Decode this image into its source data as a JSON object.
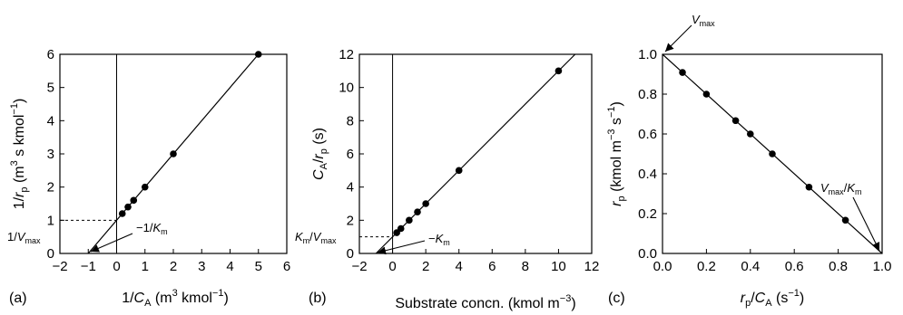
{
  "chart_data": [
    {
      "panel_label": "(a)",
      "type": "scatter",
      "xlabel": "1/C_A (m^3 kmol^-1)",
      "ylabel": "1/r_p (m^3 s kmol^-1)",
      "xlim": [
        -2,
        6
      ],
      "ylim": [
        0,
        6
      ],
      "x_ticks": [
        "−2",
        "−1",
        "0",
        "1",
        "2",
        "3",
        "4",
        "5",
        "6"
      ],
      "y_ticks": [
        "0",
        "1",
        "2",
        "3",
        "4",
        "5",
        "6"
      ],
      "points": [
        {
          "x": 0.2,
          "y": 1.2
        },
        {
          "x": 0.4,
          "y": 1.4
        },
        {
          "x": 0.6,
          "y": 1.6
        },
        {
          "x": 1.0,
          "y": 2.0
        },
        {
          "x": 2.0,
          "y": 3.0
        },
        {
          "x": 5.0,
          "y": 6.0
        }
      ],
      "fit_line": {
        "from": [
          -1,
          0
        ],
        "to": [
          5,
          6
        ]
      },
      "annotations": {
        "intercept": "1/V_max",
        "root": "−1/K_m"
      }
    },
    {
      "panel_label": "(b)",
      "type": "scatter",
      "xlabel": "Substrate concn. (kmol m^-3)",
      "ylabel": "C_A/r_p (s)",
      "xlim": [
        -2,
        12
      ],
      "ylim": [
        0,
        12
      ],
      "x_ticks": [
        "−2",
        "0",
        "2",
        "4",
        "6",
        "8",
        "10",
        "12"
      ],
      "y_ticks": [
        "0",
        "2",
        "4",
        "6",
        "8",
        "10",
        "12"
      ],
      "points": [
        {
          "x": 0.25,
          "y": 1.25
        },
        {
          "x": 0.5,
          "y": 1.5
        },
        {
          "x": 1.0,
          "y": 2.0
        },
        {
          "x": 1.5,
          "y": 2.5
        },
        {
          "x": 2.0,
          "y": 3.0
        },
        {
          "x": 4.0,
          "y": 5.0
        },
        {
          "x": 10.0,
          "y": 11.0
        }
      ],
      "fit_line": {
        "from": [
          -1,
          0
        ],
        "to": [
          11,
          12
        ]
      },
      "annotations": {
        "intercept": "K_m/V_max",
        "root": "−K_m"
      }
    },
    {
      "panel_label": "(c)",
      "type": "scatter",
      "xlabel": "r_p/C_A (s^-1)",
      "ylabel": "r_p (kmol m^-3 s^-1)",
      "xlim": [
        0,
        1
      ],
      "ylim": [
        0,
        1
      ],
      "x_ticks": [
        "0.0",
        "0.2",
        "0.4",
        "0.6",
        "0.8",
        "1.0"
      ],
      "y_ticks": [
        "0.0",
        "0.2",
        "0.4",
        "0.6",
        "0.8",
        "1.0"
      ],
      "points": [
        {
          "x": 0.091,
          "y": 0.909
        },
        {
          "x": 0.2,
          "y": 0.8
        },
        {
          "x": 0.333,
          "y": 0.667
        },
        {
          "x": 0.4,
          "y": 0.6
        },
        {
          "x": 0.5,
          "y": 0.5
        },
        {
          "x": 0.667,
          "y": 0.333
        },
        {
          "x": 0.833,
          "y": 0.167
        }
      ],
      "fit_line": {
        "from": [
          0,
          1
        ],
        "to": [
          1,
          0
        ]
      },
      "annotations": {
        "y_intercept": "V_max",
        "x_intercept": "V_max/K_m"
      }
    }
  ]
}
